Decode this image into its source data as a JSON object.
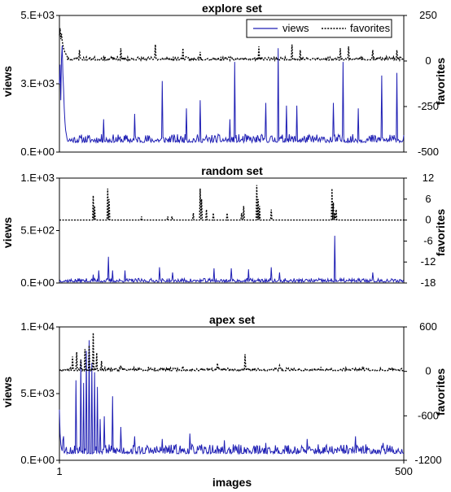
{
  "figure": {
    "shared_xlabel": "images"
  },
  "chart_data": [
    {
      "type": "line",
      "title": "explore set",
      "xlabel": "",
      "ylabel": "views",
      "y2label": "favorites",
      "xlim": [
        1,
        500
      ],
      "ylim": [
        0,
        5000
      ],
      "y2lim": [
        -500,
        250
      ],
      "yticks": [
        "0.E+00",
        "3.E+03",
        "5.E+03"
      ],
      "y2ticks": [
        "-500",
        "-250",
        "0",
        "250"
      ],
      "legend": {
        "placement": "top-right",
        "entries": [
          "views",
          "favorites"
        ]
      },
      "series": [
        {
          "name": "views",
          "axis": "left",
          "style": "solid",
          "color": "#1f1fb4",
          "baseline": 400,
          "noise": 300,
          "seed": 11,
          "start": [
            2500,
            3200,
            1900,
            3400,
            3900,
            2900,
            2300,
            1600,
            1100,
            800,
            650,
            500
          ],
          "peaks": [
            [
              65,
              1200
            ],
            [
              110,
              1400
            ],
            [
              150,
              2600
            ],
            [
              185,
              1600
            ],
            [
              205,
              1900
            ],
            [
              248,
              1200
            ],
            [
              255,
              3300
            ],
            [
              300,
              1800
            ],
            [
              318,
              3800
            ],
            [
              330,
              1700
            ],
            [
              345,
              1700
            ],
            [
              398,
              1800
            ],
            [
              412,
              3300
            ],
            [
              434,
              1600
            ],
            [
              468,
              2800
            ],
            [
              490,
              2900
            ]
          ]
        },
        {
          "name": "favorites",
          "axis": "right",
          "style": "dotted",
          "color": "#000000",
          "baseline": 8,
          "noise": 18,
          "seed": 23,
          "start": [
            140,
            180,
            120,
            150,
            110,
            90,
            70,
            60,
            45,
            40,
            35,
            30
          ],
          "peaks": [
            [
              30,
              60
            ],
            [
              90,
              70
            ],
            [
              140,
              90
            ],
            [
              180,
              70
            ],
            [
              205,
              50
            ],
            [
              290,
              80
            ],
            [
              338,
              90
            ],
            [
              350,
              60
            ],
            [
              408,
              70
            ],
            [
              420,
              80
            ],
            [
              455,
              60
            ],
            [
              490,
              60
            ]
          ]
        }
      ]
    },
    {
      "type": "line",
      "title": "random set",
      "xlabel": "",
      "ylabel": "views",
      "y2label": "favorites",
      "xlim": [
        1,
        500
      ],
      "ylim": [
        0,
        1000
      ],
      "y2lim": [
        -18,
        12
      ],
      "yticks": [
        "0.E+00",
        "5.E+02",
        "1.E+03"
      ],
      "y2ticks": [
        "-18",
        "-12",
        "-6",
        "0",
        "6",
        "12"
      ],
      "series": [
        {
          "name": "views",
          "axis": "left",
          "style": "solid",
          "color": "#1f1fb4",
          "baseline": 15,
          "noise": 35,
          "seed": 37,
          "start": [],
          "peaks": [
            [
              50,
              80
            ],
            [
              58,
              120
            ],
            [
              72,
              250
            ],
            [
              78,
              120
            ],
            [
              96,
              120
            ],
            [
              146,
              150
            ],
            [
              165,
              100
            ],
            [
              225,
              140
            ],
            [
              250,
              140
            ],
            [
              275,
              130
            ],
            [
              308,
              150
            ],
            [
              320,
              100
            ],
            [
              400,
              450
            ],
            [
              455,
              100
            ]
          ]
        },
        {
          "name": "favorites",
          "axis": "right",
          "style": "dotted",
          "color": "#000000",
          "baseline": 0,
          "noise": 0,
          "seed": 41,
          "start": [],
          "peaks": [
            [
              50,
              7
            ],
            [
              52,
              4
            ],
            [
              71,
              9
            ],
            [
              73,
              6
            ],
            [
              164,
              1
            ],
            [
              205,
              9
            ],
            [
              207,
              6
            ],
            [
              214,
              3
            ],
            [
              224,
              2
            ],
            [
              244,
              2
            ],
            [
              265,
              2
            ],
            [
              268,
              4
            ],
            [
              287,
              10
            ],
            [
              289,
              6
            ],
            [
              291,
              4
            ],
            [
              308,
              3
            ],
            [
              396,
              9
            ],
            [
              398,
              5
            ],
            [
              400,
              2
            ],
            [
              402,
              3
            ],
            [
              195,
              2
            ],
            [
              158,
              1
            ],
            [
              120,
              1
            ]
          ]
        }
      ]
    },
    {
      "type": "line",
      "title": "apex set",
      "xlabel": "images",
      "ylabel": "views",
      "y2label": "favorites",
      "xlim": [
        1,
        500
      ],
      "ylim": [
        0,
        10000
      ],
      "y2lim": [
        -1200,
        600
      ],
      "xticks": [
        "1",
        "500"
      ],
      "yticks": [
        "0.E+00",
        "5.E+03",
        "1.E+04"
      ],
      "y2ticks": [
        "-1200",
        "-600",
        "0",
        "600"
      ],
      "series": [
        {
          "name": "views",
          "axis": "left",
          "style": "solid",
          "color": "#1f1fb4",
          "baseline": 600,
          "noise": 700,
          "seed": 53,
          "start": [
            3800,
            2000,
            1200,
            900,
            700,
            1500,
            1800
          ],
          "peaks": [
            [
              25,
              6000
            ],
            [
              32,
              7500
            ],
            [
              36,
              5800
            ],
            [
              40,
              8200
            ],
            [
              44,
              9000
            ],
            [
              48,
              7300
            ],
            [
              52,
              6600
            ],
            [
              56,
              5500
            ],
            [
              60,
              3100
            ],
            [
              66,
              3300
            ],
            [
              78,
              4800
            ],
            [
              90,
              2500
            ],
            [
              110,
              1800
            ],
            [
              150,
              1600
            ],
            [
              190,
              2000
            ],
            [
              240,
              1500
            ],
            [
              300,
              1300
            ],
            [
              360,
              1600
            ],
            [
              430,
              1800
            ],
            [
              470,
              1300
            ]
          ]
        },
        {
          "name": "favorites",
          "axis": "right",
          "style": "dotted",
          "color": "#000000",
          "baseline": 15,
          "noise": 40,
          "seed": 67,
          "start": [],
          "peaks": [
            [
              20,
              200
            ],
            [
              26,
              260
            ],
            [
              32,
              160
            ],
            [
              38,
              300
            ],
            [
              44,
              350
            ],
            [
              50,
              520
            ],
            [
              55,
              250
            ],
            [
              62,
              140
            ],
            [
              90,
              80
            ],
            [
              130,
              60
            ],
            [
              180,
              70
            ],
            [
              230,
              110
            ],
            [
              270,
              230
            ],
            [
              320,
              80
            ],
            [
              380,
              60
            ],
            [
              440,
              50
            ]
          ]
        }
      ]
    }
  ]
}
